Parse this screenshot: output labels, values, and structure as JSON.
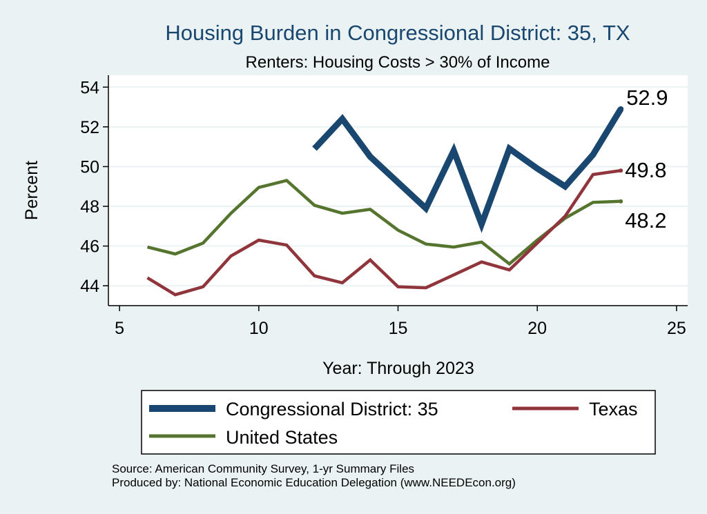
{
  "colors": {
    "background": "#eaf2f3",
    "plot_background": "#ffffff",
    "grid": "#eaf2f3",
    "district": "#1a476f",
    "texas": "#90353b",
    "united_states": "#55752f",
    "title": "#1a476f"
  },
  "chart_data": {
    "type": "line",
    "title": "Housing Burden in Congressional District:  35, TX",
    "subtitle": "Renters: Housing Costs > 30% of Income",
    "xlabel": "Year: Through 2023",
    "ylabel": "Percent",
    "xlim": [
      4.6,
      25.4
    ],
    "ylim": [
      43.0,
      54.6
    ],
    "x_ticks": [
      5,
      10,
      15,
      20,
      25
    ],
    "y_ticks": [
      44,
      46,
      48,
      50,
      52,
      54
    ],
    "grid": true,
    "legend_position": "bottom",
    "series": [
      {
        "key": "district",
        "name": "Congressional District:  35",
        "x": [
          12,
          13,
          14,
          15,
          16,
          17,
          18,
          19,
          20,
          21,
          22,
          23
        ],
        "values": [
          50.9,
          52.4,
          50.5,
          49.2,
          47.9,
          50.8,
          47.1,
          50.9,
          49.9,
          49.0,
          50.6,
          52.9
        ],
        "end_label": "52.9"
      },
      {
        "key": "texas",
        "name": "Texas",
        "x": [
          6,
          7,
          8,
          9,
          10,
          11,
          12,
          13,
          14,
          15,
          16,
          17,
          18,
          19,
          20,
          21,
          22,
          23
        ],
        "values": [
          44.4,
          43.55,
          43.95,
          45.5,
          46.3,
          46.05,
          44.5,
          44.15,
          45.3,
          43.95,
          43.9,
          44.55,
          45.2,
          44.8,
          46.15,
          47.5,
          49.6,
          49.8
        ],
        "end_label": "49.8"
      },
      {
        "key": "united_states",
        "name": "United States",
        "x": [
          6,
          7,
          8,
          9,
          10,
          11,
          12,
          13,
          14,
          15,
          16,
          17,
          18,
          19,
          20,
          21,
          22,
          23
        ],
        "values": [
          45.95,
          45.6,
          46.15,
          47.65,
          48.95,
          49.3,
          48.05,
          47.65,
          47.85,
          46.8,
          46.1,
          45.95,
          46.2,
          45.1,
          46.3,
          47.4,
          48.2,
          48.25
        ],
        "end_label": "48.2"
      }
    ],
    "source_lines": [
      "Source: American Community Survey, 1-yr Summary Files",
      "Produced by: National Economic Education Delegation (www.NEEDEcon.org)"
    ]
  }
}
